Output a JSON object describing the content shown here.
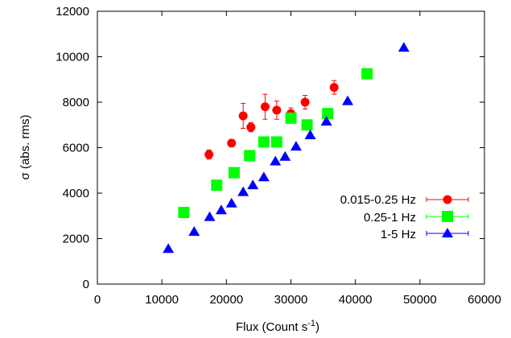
{
  "chart_data": {
    "type": "scatter",
    "xlabel": "Flux (Count s",
    "xlabel_sup": "-1",
    "xlabel_end": ")",
    "ylabel": "σ (abs. rms)",
    "xlim": [
      0,
      60000
    ],
    "ylim": [
      0,
      12000
    ],
    "xticks": [
      0,
      10000,
      20000,
      30000,
      40000,
      50000,
      60000
    ],
    "yticks": [
      0,
      2000,
      4000,
      6000,
      8000,
      10000,
      12000
    ],
    "legend_position": "right",
    "series": [
      {
        "name": "0.015-0.25 Hz",
        "marker": "circle",
        "color": "#ff0000",
        "points": [
          {
            "x": 17300,
            "y": 5700,
            "err": 200
          },
          {
            "x": 20800,
            "y": 6200,
            "err": 150
          },
          {
            "x": 22600,
            "y": 7400,
            "err": 550
          },
          {
            "x": 23800,
            "y": 6900,
            "err": 200
          },
          {
            "x": 26000,
            "y": 7800,
            "err": 550
          },
          {
            "x": 27800,
            "y": 7650,
            "err": 400
          },
          {
            "x": 30000,
            "y": 7500,
            "err": 250
          },
          {
            "x": 32200,
            "y": 8000,
            "err": 300
          },
          {
            "x": 36700,
            "y": 8650,
            "err": 300
          }
        ]
      },
      {
        "name": "0.25-1 Hz",
        "marker": "square",
        "color": "#00ff00",
        "points": [
          {
            "x": 13400,
            "y": 3150
          },
          {
            "x": 18500,
            "y": 4350
          },
          {
            "x": 21200,
            "y": 4900
          },
          {
            "x": 23600,
            "y": 5650
          },
          {
            "x": 25800,
            "y": 6250
          },
          {
            "x": 27800,
            "y": 6250
          },
          {
            "x": 30000,
            "y": 7300
          },
          {
            "x": 32500,
            "y": 7000
          },
          {
            "x": 35700,
            "y": 7500
          },
          {
            "x": 41800,
            "y": 9250
          }
        ]
      },
      {
        "name": "1-5 Hz",
        "marker": "triangle",
        "color": "#0000ff",
        "points": [
          {
            "x": 11000,
            "y": 1550
          },
          {
            "x": 15000,
            "y": 2300
          },
          {
            "x": 17400,
            "y": 2950
          },
          {
            "x": 19200,
            "y": 3250
          },
          {
            "x": 20800,
            "y": 3550
          },
          {
            "x": 22600,
            "y": 4050
          },
          {
            "x": 24100,
            "y": 4350
          },
          {
            "x": 25800,
            "y": 4700
          },
          {
            "x": 27600,
            "y": 5400
          },
          {
            "x": 29100,
            "y": 5600
          },
          {
            "x": 30800,
            "y": 6050
          },
          {
            "x": 33000,
            "y": 6550
          },
          {
            "x": 35500,
            "y": 7150
          },
          {
            "x": 38800,
            "y": 8050
          },
          {
            "x": 47500,
            "y": 10400
          }
        ]
      }
    ]
  }
}
